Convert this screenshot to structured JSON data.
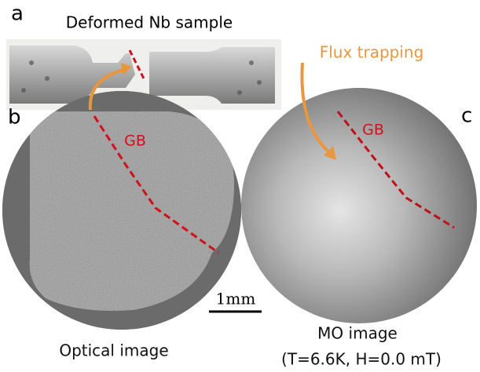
{
  "panels": [
    {
      "label": "a",
      "title": "Deformed Nb sample"
    },
    {
      "label": "b",
      "annotation": "GB",
      "caption": "Optical image"
    },
    {
      "label": "c",
      "annotation": "GB",
      "caption": "MO image",
      "subcaption": "(T=6.6K, H=0.0 mT)"
    }
  ],
  "flux_label": "Flux trapping",
  "scale_bar": "1mm"
}
